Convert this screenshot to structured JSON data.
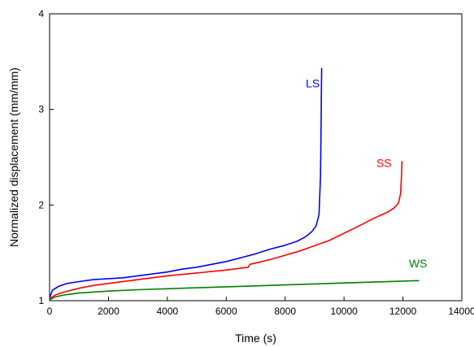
{
  "chart_data": {
    "type": "line",
    "title": "",
    "xlabel": "Time (s)",
    "ylabel": "Normalized displacement (mm/mm)",
    "xlim": [
      0,
      14000
    ],
    "ylim": [
      1,
      4
    ],
    "xticks": [
      0,
      2000,
      4000,
      6000,
      8000,
      10000,
      12000,
      14000
    ],
    "yticks": [
      1,
      2,
      3,
      4
    ],
    "grid": false,
    "legend": "none",
    "series": [
      {
        "name": "LS",
        "color": "#0000ff",
        "x": [
          0,
          100,
          300,
          600,
          1000,
          1500,
          2000,
          2500,
          3000,
          3500,
          4000,
          4500,
          5000,
          5500,
          6000,
          6500,
          7000,
          7500,
          8000,
          8400,
          8700,
          8900,
          9050,
          9150,
          9200,
          9220,
          9230,
          9240,
          9245
        ],
        "y": [
          1.03,
          1.11,
          1.15,
          1.18,
          1.2,
          1.22,
          1.23,
          1.24,
          1.26,
          1.28,
          1.3,
          1.33,
          1.35,
          1.38,
          1.41,
          1.45,
          1.49,
          1.54,
          1.58,
          1.62,
          1.67,
          1.72,
          1.78,
          1.9,
          2.3,
          2.8,
          3.2,
          3.43,
          3.43
        ]
      },
      {
        "name": "SS",
        "color": "#ff0000",
        "x": [
          0,
          200,
          500,
          1000,
          1500,
          2000,
          3000,
          4000,
          5000,
          6000,
          6750,
          6800,
          7500,
          8500,
          9500,
          10500,
          11000,
          11500,
          11700,
          11850,
          11920,
          11950,
          11970
        ],
        "y": [
          1.02,
          1.06,
          1.09,
          1.13,
          1.16,
          1.18,
          1.22,
          1.26,
          1.29,
          1.32,
          1.35,
          1.38,
          1.43,
          1.52,
          1.63,
          1.78,
          1.86,
          1.93,
          1.97,
          2.02,
          2.12,
          2.3,
          2.46
        ]
      },
      {
        "name": "WS",
        "color": "#008000",
        "x": [
          0,
          200,
          500,
          1000,
          2000,
          3000,
          4000,
          5000,
          6000,
          7000,
          8000,
          9000,
          10000,
          11000,
          12000,
          12550
        ],
        "y": [
          1.01,
          1.04,
          1.06,
          1.08,
          1.1,
          1.115,
          1.125,
          1.135,
          1.145,
          1.155,
          1.165,
          1.175,
          1.185,
          1.195,
          1.205,
          1.21
        ]
      }
    ],
    "annotations": [
      {
        "text": "LS",
        "x": 8700,
        "y": 3.23,
        "color": "#0000ff"
      },
      {
        "text": "SS",
        "x": 11100,
        "y": 2.4,
        "color": "#ff0000"
      },
      {
        "text": "WS",
        "x": 12200,
        "y": 1.35,
        "color": "#008000"
      }
    ]
  }
}
